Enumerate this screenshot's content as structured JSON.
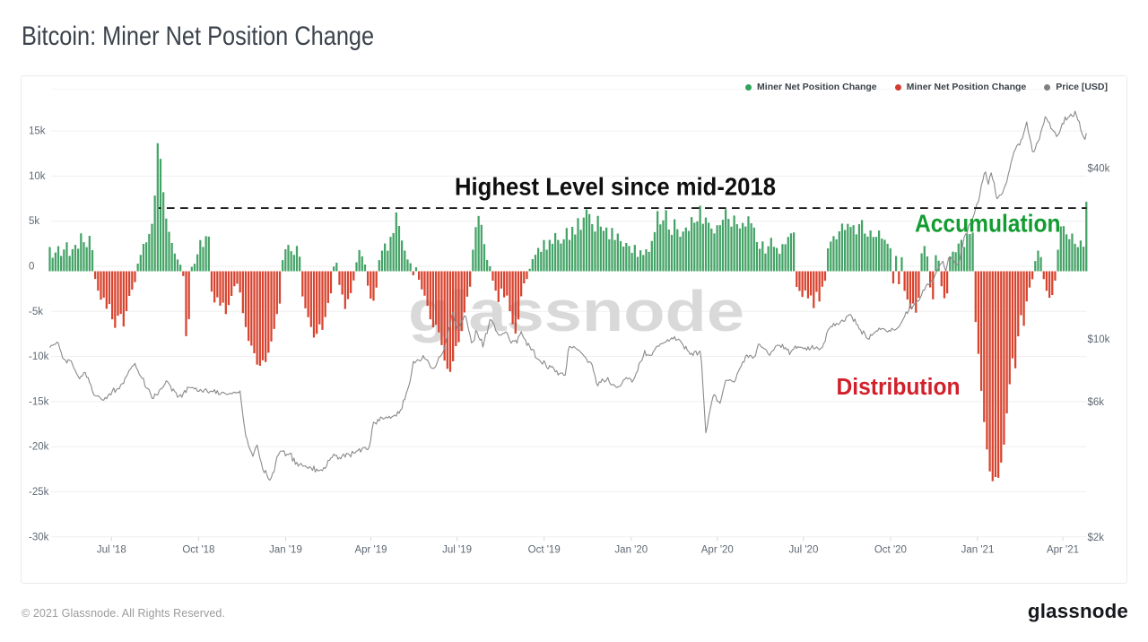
{
  "page": {
    "title": "Bitcoin: Miner Net Position Change"
  },
  "legend": {
    "items": [
      {
        "label": "Miner Net Position Change",
        "color": "#2fa35e"
      },
      {
        "label": "Miner Net Position Change",
        "color": "#d23b31"
      },
      {
        "label": "Price [USD]",
        "color": "#7f7f7f"
      }
    ]
  },
  "annotations": {
    "highest_level": "Highest Level since mid-2018",
    "accumulation": "Accumulation",
    "distribution": "Distribution",
    "accumulation_color": "#129c31",
    "distribution_color": "#d2202a",
    "highest_level_color": "#0f0f0f"
  },
  "watermark": "glassnode",
  "footer": {
    "copyright": "© 2021 Glassnode. All Rights Reserved.",
    "brand": "glassnode"
  },
  "chart_data": {
    "type": "bar+line",
    "title": "Bitcoin: Miner Net Position Change",
    "bar_series": {
      "name": "Miner Net Position Change",
      "unit": "BTC (thousands)",
      "positive_color": "#44a366",
      "negative_color": "#d8432e",
      "start_date": "2018-04-27",
      "interval_days": 3,
      "values_k": [
        2.69,
        1.49,
        2.07,
        2.78,
        1.7,
        2.41,
        3.2,
        1.7,
        2.45,
        2.92,
        2.5,
        4.2,
        3.22,
        2.67,
        3.92,
        2.33,
        -0.86,
        -2.15,
        -3.15,
        -2.93,
        -4.16,
        -3.64,
        -5.33,
        -6.28,
        -4.93,
        -4.73,
        -6.13,
        -4.42,
        -2.73,
        -2.04,
        -1.2,
        0.85,
        1.82,
        3.03,
        3.2,
        4.14,
        5.26,
        8.39,
        14.19,
        12.46,
        8.76,
        5.84,
        4.38,
        3.13,
        1.96,
        1.3,
        0.72,
        -0.53,
        -7.19,
        -5.31,
        0.48,
        0.83,
        1.88,
        3.45,
        2.7,
        3.89,
        3.84,
        -2.26,
        -3.47,
        -2.89,
        -3.81,
        -3.49,
        -4.75,
        -3.75,
        -2.73,
        -1.67,
        -1.39,
        -2.36,
        -4.65,
        -6.19,
        -7.73,
        -8.25,
        -9.1,
        -10.35,
        -10.48,
        -9.88,
        -10.07,
        -9.03,
        -7.79,
        -6.4,
        -4.75,
        -3.59,
        1.23,
        2.43,
        2.92,
        2.22,
        1.81,
        2.81,
        1.61,
        -2.79,
        -4.11,
        -5.1,
        -6.17,
        -7.36,
        -6.95,
        -5.89,
        -6.5,
        -5.08,
        -3.52,
        -2.45,
        0.52,
        0.95,
        -1.52,
        -2.58,
        -4.19,
        -3.09,
        -2.42,
        -1.02,
        0.99,
        2.35,
        1.65,
        0.75,
        -1.6,
        -3.03,
        -3.27,
        -1.81,
        1.23,
        2.28,
        3.08,
        2.27,
        3.81,
        4.23,
        6.52,
        5.02,
        3.4,
        2.29,
        1.31,
        0.89,
        -0.45,
        0.43,
        -0.95,
        -2.01,
        -2.71,
        -3.84,
        -5.33,
        -6.21,
        -5.94,
        -6.79,
        -8.19,
        -9.9,
        -10.82,
        -11.16,
        -9.99,
        -8.3,
        -7.86,
        -6.63,
        -4.57,
        -2.82,
        -1.72,
        2.38,
        4.9,
        6.12,
        5.15,
        3.01,
        1.26,
        0.56,
        -1.04,
        -2.15,
        -3.42,
        -1.93,
        -2.89,
        -2.7,
        -4.42,
        -5.88,
        -6.91,
        -5.34,
        -2.78,
        -1.34,
        -0.86,
        0.27,
        1.34,
        1.83,
        2.58,
        2.15,
        3.45,
        2.39,
        3.48,
        3.04,
        4.24,
        3.47,
        3.07,
        3.54,
        4.79,
        3.48,
        4.92,
        4.07,
        5.89,
        4.6,
        5.95,
        6.86,
        6.34,
        5.22,
        4.4,
        6.14,
        4.95,
        4.49,
        4.84,
        3.54,
        4.8,
        3.47,
        4.18,
        3.33,
        2.73,
        3.13,
        2.79,
        2.04,
        2.92,
        1.59,
        2.32,
        1.8,
        2.44,
        2.15,
        3.36,
        4.34,
        6.67,
        5.2,
        5.64,
        6.77,
        4.62,
        4.04,
        5.77,
        4.66,
        3.83,
        4.4,
        4.85,
        4.47,
        6.0,
        5.38,
        5.53,
        7.27,
        5.26,
        5.95,
        5.38,
        4.74,
        4.19,
        5.1,
        5.11,
        5.7,
        6.88,
        5.8,
        4.94,
        6.17,
        5.22,
        4.75,
        5.36,
        4.97,
        6.09,
        5.32,
        4.84,
        3.24,
        2.48,
        3.3,
        1.96,
        2.77,
        3.7,
        2.71,
        2.58,
        1.94,
        3.01,
        3.0,
        3.8,
        4.2,
        4.3,
        -1.74,
        -2.19,
        -2.84,
        -2.14,
        -3.01,
        -2.69,
        -4.09,
        -2.29,
        -3.36,
        -1.72,
        -1.06,
        2.53,
        3.29,
        3.89,
        3.54,
        4.42,
        5.28,
        4.57,
        5.26,
        4.91,
        5.11,
        4.09,
        5.22,
        5.68,
        4.17,
        3.84,
        4.52,
        3.8,
        3.82,
        4.51,
        3.61,
        3.49,
        3.04,
        2.55,
        -1.35,
        1.69,
        -1.44,
        1.55,
        -2.17,
        -3.13,
        -4.13,
        -3.58,
        -4.6,
        -2.94,
        1.99,
        2.8,
        1.64,
        -1.79,
        -3.12,
        1.78,
        1.17,
        -1.67,
        -2.99,
        -2.46,
        1.65,
        2.18,
        2.11,
        3.07,
        3.48,
        2.7,
        4.11,
        4.12,
        4.29,
        -5.63,
        -9.16,
        -13.26,
        -16.71,
        -19.75,
        -22.19,
        -23.27,
        -22.81,
        -22.9,
        -21.21,
        -19.22,
        -15.75,
        -12.53,
        -9.66,
        -10.76,
        -7.22,
        -4.88,
        -6.05,
        -3.34,
        -1.81,
        -0.88,
        1.13,
        2.28,
        1.56,
        -0.87,
        -2.18,
        -2.95,
        -2.64,
        -1.05,
        2.38,
        4.97,
        5.01,
        4.09,
        3.55,
        4.18,
        3.05,
        2.67,
        3.41,
        2.72,
        7.71
      ]
    },
    "line_series": {
      "name": "Price [USD]",
      "color": "#8a8a8a",
      "scale": "log",
      "start_date": "2018-04-27",
      "interval_days": 1.5,
      "values_usd": [
        9321,
        9491,
        9490,
        9564,
        9577,
        9746,
        9688,
        9260,
        8988,
        8581,
        8475,
        8431,
        8222,
        8453,
        8395,
        8372,
        8132,
        7882,
        7726,
        7532,
        7375,
        7232,
        7393,
        7402,
        7601,
        7615,
        7312,
        7315,
        7016,
        6875,
        6542,
        6353,
        6301,
        6284,
        6305,
        6242,
        6157,
        6085,
        6084,
        6217,
        6148,
        6308,
        6406,
        6342,
        6546,
        6712,
        6473,
        6632,
        6675,
        6671,
        6890,
        6959,
        6956,
        7270,
        7378,
        7542,
        7765,
        7847,
        8009,
        8059,
        8193,
        7902,
        7749,
        7511,
        7378,
        7260,
        7262,
        6823,
        6708,
        6684,
        6618,
        6395,
        6174,
        6155,
        6402,
        6346,
        6345,
        6558,
        6666,
        6690,
        6797,
        6914,
        7114,
        7063,
        6938,
        6825,
        6543,
        6659,
        6524,
        6453,
        6224,
        6289,
        6364,
        6227,
        6418,
        6578,
        6463,
        6763,
        6748,
        6728,
        6736,
        6731,
        6659,
        6710,
        6537,
        6527,
        6632,
        6552,
        6481,
        6624,
        6665,
        6515,
        6442,
        6539,
        6538,
        6508,
        6622,
        6413,
        6572,
        6357,
        6376,
        6467,
        6486,
        6447,
        6389,
        6367,
        6387,
        6438,
        6399,
        6453,
        6494,
        6438,
        6484,
        6456,
        6554,
        5900,
        5369,
        4933,
        4549,
        4427,
        4195,
        4072,
        3986,
        3851,
        3993,
        4135,
        4220,
        4010,
        3787,
        3652,
        3462,
        3372,
        3436,
        3298,
        3209,
        3174,
        3235,
        3371,
        3394,
        3628,
        3842,
        3893,
        3989,
        4026,
        4010,
        4028,
        3865,
        3918,
        3907,
        3941,
        3951,
        3700,
        3797,
        3610,
        3668,
        3555,
        3610,
        3635,
        3560,
        3557,
        3565,
        3519,
        3492,
        3543,
        3505,
        3436,
        3558,
        3393,
        3474,
        3421,
        3434,
        3453,
        3429,
        3515,
        3492,
        3562,
        3728,
        3730,
        3802,
        3823,
        3925,
        3876,
        3884,
        3761,
        3816,
        3775,
        3875,
        3925,
        3823,
        3949,
        3938,
        3901,
        3835,
        4012,
        3959,
        3953,
        4019,
        4032,
        4098,
        3989,
        4106,
        4136,
        4148,
        4081,
        4066,
        4166,
        4386,
        4808,
        5084,
        5057,
        5006,
        5200,
        5133,
        5302,
        5270,
        5211,
        5249,
        5302,
        5255,
        5334,
        5246,
        5316,
        5344,
        5385,
        5339,
        5542,
        5462,
        5619,
        5663,
        6077,
        6115,
        6420,
        6627,
        6870,
        7181,
        7699,
        8325,
        8221,
        8337,
        8452,
        8401,
        8361,
        8502,
        8740,
        8528,
        8452,
        8432,
        8230,
        7978,
        7882,
        7874,
        7909,
        8037,
        8299,
        8633,
        8658,
        8804,
        9003,
        9270,
        9888,
        10236,
        10934,
        11092,
        12016,
        12453,
        11626,
        11389,
        10927,
        10857,
        11233,
        11592,
        11689,
        12072,
        11995,
        11365,
        10735,
        10304,
        9694,
        9778,
        9899,
        10714,
        10548,
        10137,
        9910,
        9991,
        9363,
        9811,
        10448,
        10448,
        11086,
        11701,
        11638,
        11451,
        11220,
        10715,
        10560,
        10353,
        10296,
        10326,
        10443,
        10477,
        10578,
        10511,
        10193,
        9864,
        9657,
        9856,
        9819,
        9900,
        9656,
        10184,
        10312,
        10610,
        10274,
        10038,
        9936,
        9478,
        9656,
        9411,
        9136,
        9200,
        9093,
        8600,
        8529,
        8480,
        8398,
        8269,
        8143,
        8378,
        8203,
        7919,
        7838,
        8061,
        7953,
        7990,
        7854,
        7657,
        7722,
        7460,
        7551,
        7574,
        7588,
        7436,
        7452,
        8080,
        9043,
        9416,
        9359,
        9291,
        9408,
        9317,
        9211,
        9147,
        9093,
        8959,
        8866,
        8731,
        8632,
        8484,
        8257,
        8313,
        8263,
        8092,
        7685,
        7410,
        6971,
        6829,
        7051,
        7024,
        7225,
        7127,
        7050,
        7157,
        7306,
        7061,
        6902,
        6879,
        6911,
        6835,
        6736,
        6768,
        6799,
        6832,
        6978,
        7163,
        7203,
        7306,
        7222,
        7266,
        7236,
        7043,
        7159,
        7331,
        7577,
        7699,
        8191,
        8306,
        8406,
        8688,
        9105,
        8733,
        8801,
        8752,
        8764,
        8753,
        9013,
        9150,
        9355,
        9438,
        9425,
        9592,
        9629,
        9665,
        9721,
        9761,
        9946,
        9815,
        9942,
        10095,
        9993,
        10196,
        9890,
        9939,
        9976,
        9863,
        9680,
        9513,
        9216,
        9416,
        9112,
        9017,
        8817,
        8903,
        8739,
        9030,
        9058,
        8765,
        8975,
        9060,
        8256,
        6788,
        5638,
        4665,
        4901,
        5290,
        5611,
        5931,
        6246,
        6369,
        6278,
        6030,
        6026,
        5924,
        6177,
        6520,
        6807,
        7140,
        7145,
        7129,
        7188,
        7126,
        7070,
        7045,
        7182,
        7515,
        7694,
        7868,
        8033,
        8308,
        8280,
        8696,
        8781,
        8597,
        8753,
        8725,
        8544,
        8639,
        8736,
        9187,
        9589,
        9570,
        9365,
        9335,
        9234,
        9213,
        9058,
        8843,
        8748,
        8980,
        9068,
        9157,
        9402,
        9494,
        9503,
        9491,
        9327,
        9576,
        9223,
        9323,
        9157,
        9209,
        8803,
        9012,
        9154,
        9227,
        9452,
        9263,
        9392,
        9335,
        9355,
        9307,
        9233,
        9307,
        9130,
        9381,
        9137,
        9278,
        9485,
        9225,
        9252,
        9379,
        9253,
        9160,
        9279,
        9315,
        9637,
        9779,
        10411,
        10744,
        10884,
        11075,
        11042,
        11349,
        11122,
        11360,
        11256,
        11279,
        11525,
        11663,
        11531,
        11582,
        11986,
        12060,
        12185,
        12178,
        11942,
        11535,
        11749,
        11266,
        11203,
        10849,
        10766,
        10389,
        10679,
        10469,
        10105,
        10025,
        9967,
        10369,
        10280,
        10444,
        10527,
        10667,
        10660,
        10923,
        10785,
        10890,
        10864,
        10810,
        10670,
        10584,
        10720,
        10638,
        10901,
        10799,
        10731,
        10821,
        10929,
        11037,
        11258,
        11491,
        11752,
        11996,
        12459,
        12292,
        12648,
        13333,
        12732,
        13067,
        13303,
        13428,
        13599,
        13623,
        13949,
        14319,
        14882,
        14849,
        15369,
        15635,
        15543,
        15643,
        16066,
        15925,
        16606,
        17075,
        17441,
        17953,
        18300,
        18497,
        18803,
        17924,
        17355,
        18269,
        19326,
        19112,
        19263,
        19342,
        18599,
        18563,
        18306,
        18485,
        19309,
        20607,
        21428,
        22896,
        23461,
        23530,
        25060,
        25514,
        25320,
        26737,
        27538,
        28861,
        30009,
        30538,
        32283,
        34791,
        36106,
        38199,
        38852,
        36634,
        35139,
        37317,
        38563,
        36632,
        35703,
        32895,
        31258,
        31594,
        32206,
        32211,
        32766,
        33987,
        34929,
        35881,
        38062,
        39677,
        42033,
        43693,
        45751,
        46661,
        48004,
        48756,
        48299,
        50351,
        51143,
        53489,
        55836,
        58341,
        54210,
        51715,
        49312,
        45917,
        45704,
        46832,
        49002,
        49723,
        50847,
        53838,
        55891,
        57541,
        60858,
        59948,
        58458,
        57984,
        55384,
        54815,
        54093,
        53513,
        51763,
        52565,
        53284,
        55275,
        57607,
        57443,
        60767,
        59199,
        60248,
        60944,
        62159,
        61077,
        61018,
        63660,
        61530,
        59216,
        58471,
        54836,
        52970,
        51551,
        50612,
        53242
      ]
    },
    "threshold_line": {
      "value_k": 7.0,
      "style": "dashed",
      "color": "#1b1b1b"
    },
    "y_left_axis": {
      "ticks": [
        {
          "label": "15k",
          "value_k": 15
        },
        {
          "label": "10k",
          "value_k": 10
        },
        {
          "label": "5k",
          "value_k": 5
        },
        {
          "label": "0",
          "value_k": 0
        },
        {
          "label": "-5k",
          "value_k": -5
        },
        {
          "label": "-10k",
          "value_k": -10
        },
        {
          "label": "-15k",
          "value_k": -15
        },
        {
          "label": "-20k",
          "value_k": -20
        },
        {
          "label": "-25k",
          "value_k": -25
        },
        {
          "label": "-30k",
          "value_k": -30
        }
      ],
      "range_k": [
        -30,
        20
      ]
    },
    "y_right_axis": {
      "ticks": [
        {
          "label": "$40k",
          "value_usd": 40000
        },
        {
          "label": "$10k",
          "value_usd": 10000
        },
        {
          "label": "$6k",
          "value_usd": 6000
        },
        {
          "label": "$2k",
          "value_usd": 2000
        }
      ],
      "scale": "log"
    },
    "x_axis": {
      "ticks": [
        "Jul '18",
        "Oct '18",
        "Jan '19",
        "Apr '19",
        "Jul '19",
        "Oct '19",
        "Jan '20",
        "Apr '20",
        "Jul '20",
        "Oct '20",
        "Jan '21",
        "Apr '21"
      ]
    },
    "grid": true,
    "legend_position": "top-right"
  }
}
